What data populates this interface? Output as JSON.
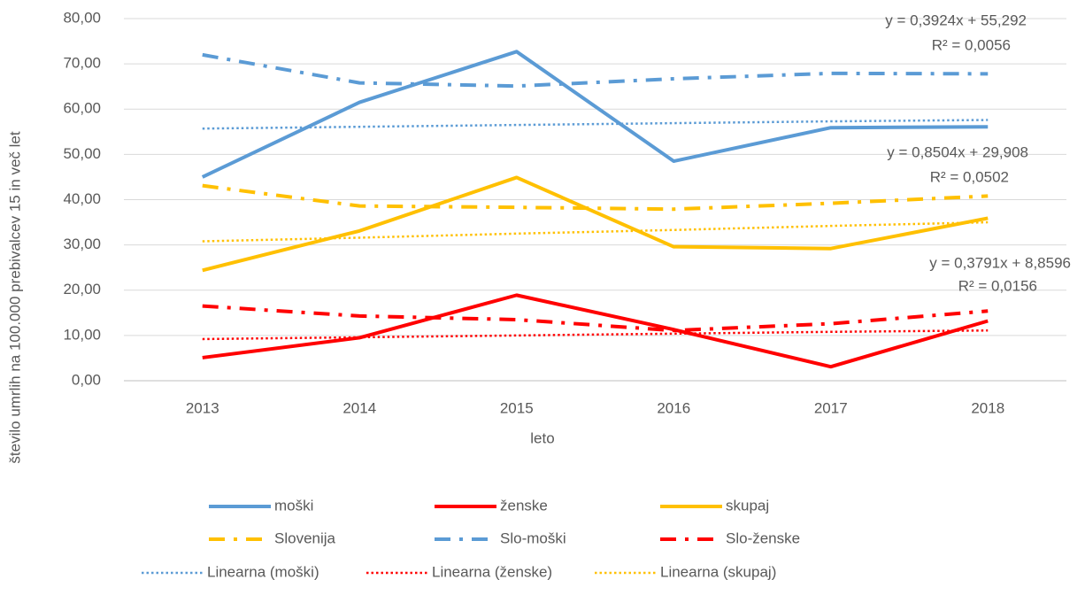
{
  "chart_data": {
    "type": "line",
    "x_label": "leto",
    "y_label": "število umrlih na 100.000 prebivalcev 15 in več let",
    "categories": [
      "2013",
      "2014",
      "2015",
      "2016",
      "2017",
      "2018"
    ],
    "ylim": [
      0,
      80
    ],
    "yticks": [
      {
        "value": 0,
        "label": "0,00"
      },
      {
        "value": 10,
        "label": "10,00"
      },
      {
        "value": 20,
        "label": "20,00"
      },
      {
        "value": 30,
        "label": "30,00"
      },
      {
        "value": 40,
        "label": "40,00"
      },
      {
        "value": 50,
        "label": "50,00"
      },
      {
        "value": 60,
        "label": "60,00"
      },
      {
        "value": 70,
        "label": "70,00"
      },
      {
        "value": 80,
        "label": "80,00"
      }
    ],
    "grid": true,
    "legend": "bottom",
    "series": [
      {
        "name": "moški",
        "color": "#5b9bd5",
        "style": "solid",
        "values": [
          45.0,
          61.5,
          72.7,
          48.5,
          55.9,
          56.1
        ]
      },
      {
        "name": "ženske",
        "color": "#ff0000",
        "style": "solid",
        "values": [
          5.1,
          9.5,
          18.9,
          11.3,
          3.1,
          13.2
        ]
      },
      {
        "name": "skupaj",
        "color": "#ffc000",
        "style": "solid",
        "values": [
          24.4,
          33.1,
          44.9,
          29.6,
          29.2,
          35.9
        ]
      },
      {
        "name": "Slovenija",
        "color": "#ffc000",
        "style": "dashdot",
        "values": [
          43.1,
          38.6,
          38.3,
          37.9,
          39.2,
          40.8
        ]
      },
      {
        "name": "Slo-moški",
        "color": "#5b9bd5",
        "style": "dashdot",
        "values": [
          72.0,
          65.8,
          65.1,
          66.7,
          67.9,
          67.8
        ]
      },
      {
        "name": "Slo-ženske",
        "color": "#ff0000",
        "style": "dashdot",
        "values": [
          16.5,
          14.3,
          13.5,
          11.1,
          12.6,
          15.4
        ]
      },
      {
        "name": "Linearna (moški)",
        "color": "#5b9bd5",
        "style": "dot",
        "values": [
          55.7,
          56.1,
          56.5,
          56.9,
          57.3,
          57.6
        ]
      },
      {
        "name": "Linearna (ženske)",
        "color": "#ff0000",
        "style": "dot",
        "values": [
          9.2,
          9.6,
          10.0,
          10.4,
          10.8,
          11.1
        ]
      },
      {
        "name": "Linearna (skupaj)",
        "color": "#ffc000",
        "style": "dot",
        "values": [
          30.8,
          31.6,
          32.5,
          33.3,
          34.2,
          35.0
        ]
      }
    ],
    "annotations": [
      {
        "equation": "y = 0,3924x + 55,292",
        "r2": "R² = 0,0056"
      },
      {
        "equation": "y = 0,8504x + 29,908",
        "r2": "R² = 0,0502"
      },
      {
        "equation": "y = 0,3791x + 8,8596",
        "r2": "R² = 0,0156"
      }
    ]
  }
}
